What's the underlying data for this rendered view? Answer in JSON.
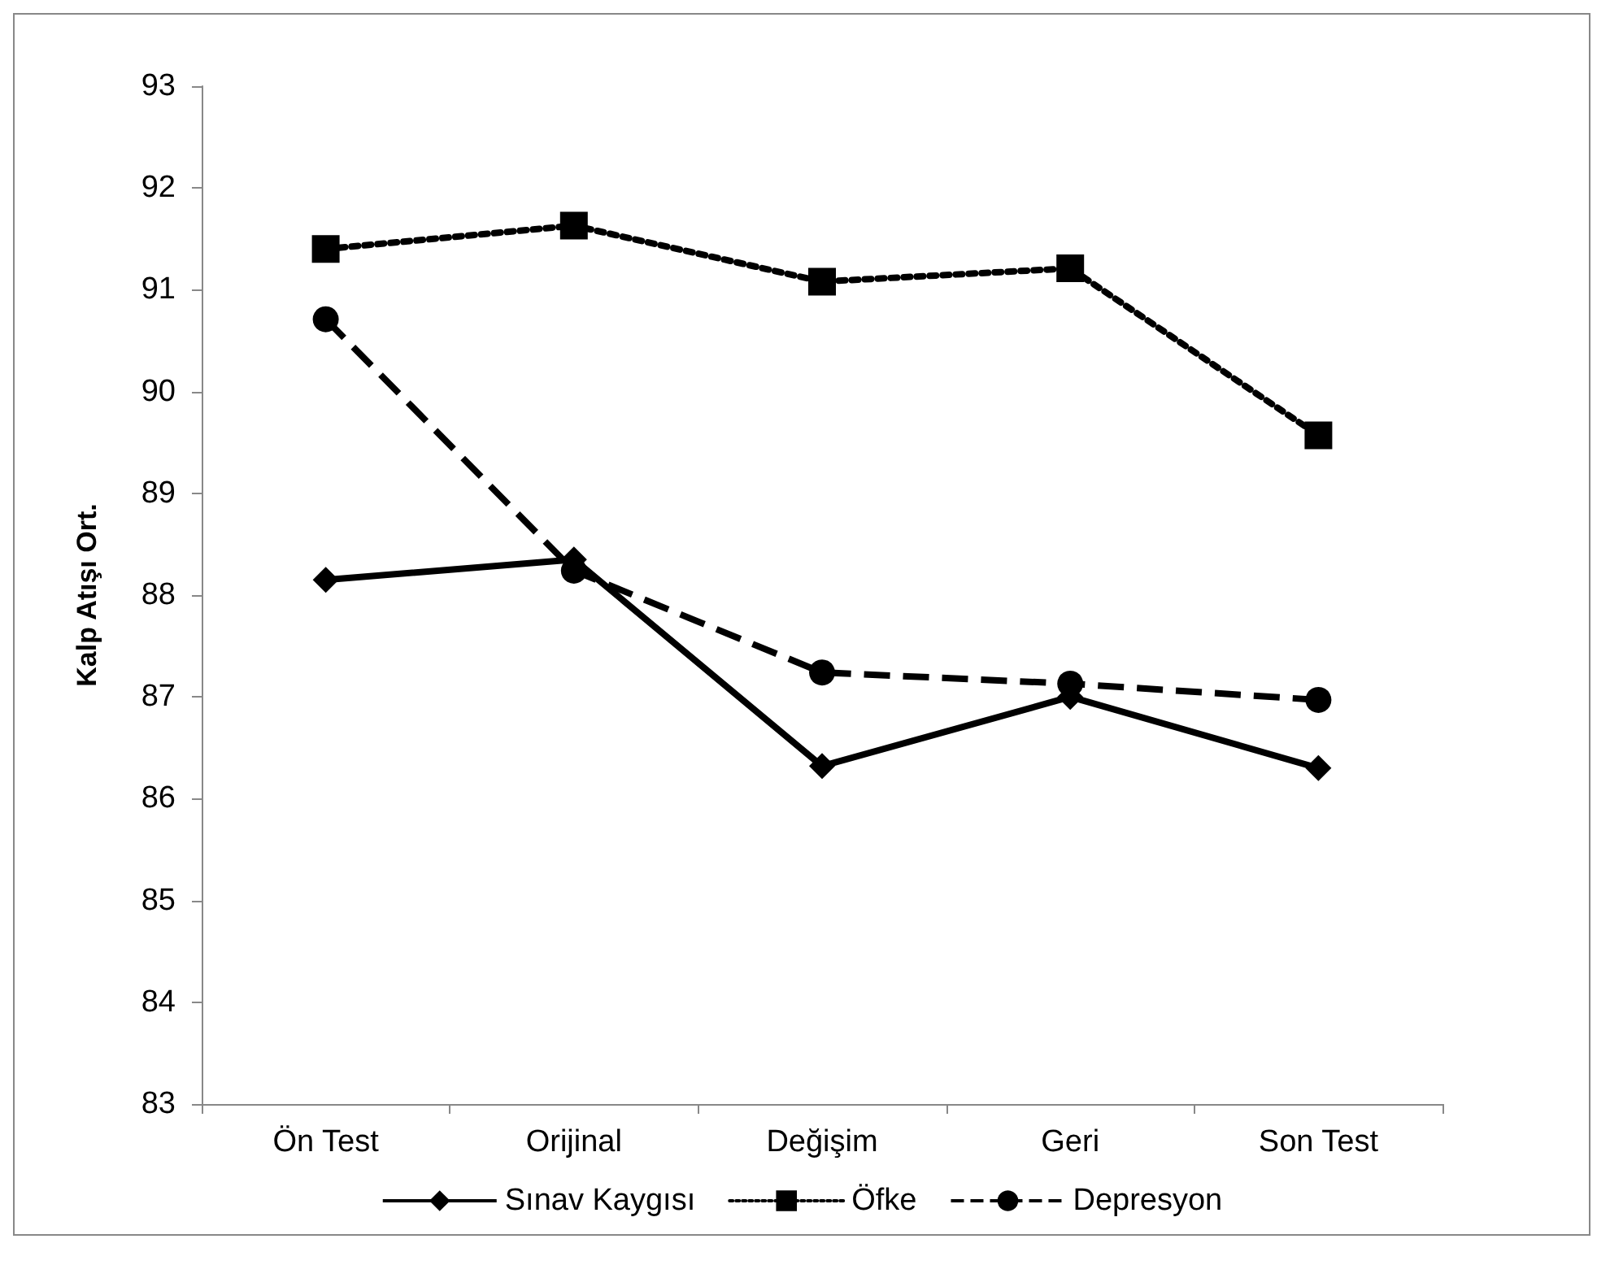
{
  "chart_data": {
    "type": "line",
    "ylabel": "Kalp Atışı Ort.",
    "categories": [
      "Ön Test",
      "Orijinal",
      "Değişim",
      "Geri",
      "Son Test"
    ],
    "series": [
      {
        "name": "Sınav Kaygısı",
        "color": "#000000",
        "marker": "diamond",
        "line_style": "solid",
        "values": [
          88.15,
          88.35,
          86.32,
          87.0,
          86.3
        ]
      },
      {
        "name": "Öfke",
        "color": "#000000",
        "marker": "square",
        "line_style": "dotted",
        "values": [
          91.4,
          91.63,
          91.08,
          91.21,
          89.57
        ]
      },
      {
        "name": "Depresyon",
        "color": "#000000",
        "marker": "circle",
        "line_style": "dashed",
        "values": [
          90.71,
          88.24,
          87.24,
          87.13,
          86.97
        ]
      }
    ],
    "ylim": [
      83,
      93
    ],
    "yticks": [
      83,
      84,
      85,
      86,
      87,
      88,
      89,
      90,
      91,
      92,
      93
    ],
    "grid": false,
    "legend": "bottom"
  }
}
